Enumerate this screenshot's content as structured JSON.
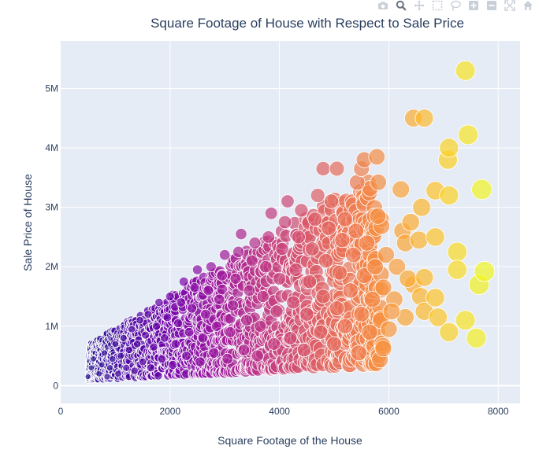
{
  "modebar": {
    "icons": [
      "camera-icon",
      "zoom-icon",
      "pan-icon",
      "box-select-icon",
      "lasso-select-icon",
      "zoom-in-icon",
      "zoom-out-icon",
      "autoscale-icon",
      "home-icon"
    ]
  },
  "colors": {
    "plot_bg": "#e5ecf6",
    "grid": "#ffffff",
    "text": "#2a3f5f",
    "colorscale": [
      "#0d0887",
      "#46039f",
      "#7201a8",
      "#9c179e",
      "#bd3786",
      "#d8576b",
      "#ed7953",
      "#fb9f3a",
      "#fdca26",
      "#f0f921"
    ]
  },
  "chart_data": {
    "type": "scatter",
    "title": "Square Footage of House with Respect to Sale Price",
    "xlabel": "Square Footage of the House",
    "ylabel": "Sale Price of House",
    "xlim": [
      0,
      8400
    ],
    "ylim": [
      -300000,
      5800000
    ],
    "xticks": [
      0,
      2000,
      4000,
      6000,
      8000
    ],
    "xtick_labels": [
      "0",
      "2000",
      "4000",
      "6000",
      "8000"
    ],
    "yticks": [
      0,
      1000000,
      2000000,
      3000000,
      4000000,
      5000000
    ],
    "ytick_labels": [
      "0",
      "1M",
      "2M",
      "3M",
      "4M",
      "5M"
    ],
    "grid": true,
    "marker_size_and_color_by": "x",
    "highlighted_points": [
      {
        "x": 7400,
        "y": 5300000
      },
      {
        "x": 6450,
        "y": 4500000
      },
      {
        "x": 6650,
        "y": 4500000
      },
      {
        "x": 7450,
        "y": 4220000
      },
      {
        "x": 7100,
        "y": 4000000
      },
      {
        "x": 5780,
        "y": 3850000
      },
      {
        "x": 7080,
        "y": 3800000
      },
      {
        "x": 4800,
        "y": 3650000
      },
      {
        "x": 5050,
        "y": 3650000
      },
      {
        "x": 5500,
        "y": 3650000
      },
      {
        "x": 5550,
        "y": 3800000
      },
      {
        "x": 5420,
        "y": 3420000
      },
      {
        "x": 7700,
        "y": 3300000
      },
      {
        "x": 6850,
        "y": 3280000
      },
      {
        "x": 6220,
        "y": 3300000
      },
      {
        "x": 7100,
        "y": 3200000
      },
      {
        "x": 6600,
        "y": 3000000
      },
      {
        "x": 6400,
        "y": 2750000
      },
      {
        "x": 6550,
        "y": 2450000
      },
      {
        "x": 6850,
        "y": 2500000
      },
      {
        "x": 7250,
        "y": 2250000
      },
      {
        "x": 7750,
        "y": 1920000
      },
      {
        "x": 7250,
        "y": 1950000
      },
      {
        "x": 6650,
        "y": 1820000
      },
      {
        "x": 6350,
        "y": 1800000
      },
      {
        "x": 7650,
        "y": 1700000
      },
      {
        "x": 6850,
        "y": 1480000
      },
      {
        "x": 6580,
        "y": 1500000
      },
      {
        "x": 6650,
        "y": 1250000
      },
      {
        "x": 6900,
        "y": 1150000
      },
      {
        "x": 7400,
        "y": 1100000
      },
      {
        "x": 7100,
        "y": 900000
      },
      {
        "x": 7600,
        "y": 800000
      },
      {
        "x": 6050,
        "y": 1250000
      },
      {
        "x": 5450,
        "y": 550000
      },
      {
        "x": 5200,
        "y": 2800000
      }
    ],
    "point_cloud": [
      {
        "x": 500,
        "y": 150000
      },
      {
        "x": 560,
        "y": 300000
      },
      {
        "x": 600,
        "y": 450000
      },
      {
        "x": 700,
        "y": 200000
      },
      {
        "x": 750,
        "y": 350000
      },
      {
        "x": 800,
        "y": 550000
      },
      {
        "x": 850,
        "y": 150000
      },
      {
        "x": 900,
        "y": 300000
      },
      {
        "x": 950,
        "y": 450000
      },
      {
        "x": 1000,
        "y": 700000
      },
      {
        "x": 1050,
        "y": 200000
      },
      {
        "x": 1100,
        "y": 500000
      },
      {
        "x": 1150,
        "y": 800000
      },
      {
        "x": 1200,
        "y": 300000
      },
      {
        "x": 1250,
        "y": 600000
      },
      {
        "x": 1300,
        "y": 950000
      },
      {
        "x": 1350,
        "y": 250000
      },
      {
        "x": 1400,
        "y": 700000
      },
      {
        "x": 1450,
        "y": 1100000
      },
      {
        "x": 1500,
        "y": 400000
      },
      {
        "x": 1550,
        "y": 850000
      },
      {
        "x": 1600,
        "y": 1200000
      },
      {
        "x": 1650,
        "y": 300000
      },
      {
        "x": 1700,
        "y": 650000
      },
      {
        "x": 1750,
        "y": 1000000
      },
      {
        "x": 1800,
        "y": 1400000
      },
      {
        "x": 1850,
        "y": 450000
      },
      {
        "x": 1900,
        "y": 800000
      },
      {
        "x": 1950,
        "y": 1150000
      },
      {
        "x": 2000,
        "y": 1500000
      },
      {
        "x": 2050,
        "y": 350000
      },
      {
        "x": 2100,
        "y": 700000
      },
      {
        "x": 2150,
        "y": 1050000
      },
      {
        "x": 2200,
        "y": 1400000
      },
      {
        "x": 2250,
        "y": 1750000
      },
      {
        "x": 2300,
        "y": 500000
      },
      {
        "x": 2350,
        "y": 900000
      },
      {
        "x": 2400,
        "y": 1300000
      },
      {
        "x": 2450,
        "y": 1650000
      },
      {
        "x": 2500,
        "y": 1950000
      },
      {
        "x": 2550,
        "y": 400000
      },
      {
        "x": 2600,
        "y": 800000
      },
      {
        "x": 2650,
        "y": 1200000
      },
      {
        "x": 2700,
        "y": 1600000
      },
      {
        "x": 2750,
        "y": 2000000
      },
      {
        "x": 2800,
        "y": 550000
      },
      {
        "x": 2850,
        "y": 1000000
      },
      {
        "x": 2900,
        "y": 1450000
      },
      {
        "x": 2950,
        "y": 1850000
      },
      {
        "x": 3000,
        "y": 2200000
      },
      {
        "x": 3050,
        "y": 450000
      },
      {
        "x": 3100,
        "y": 900000
      },
      {
        "x": 3150,
        "y": 1350000
      },
      {
        "x": 3200,
        "y": 1800000
      },
      {
        "x": 3250,
        "y": 2250000
      },
      {
        "x": 3300,
        "y": 2550000
      },
      {
        "x": 3350,
        "y": 600000
      },
      {
        "x": 3400,
        "y": 1100000
      },
      {
        "x": 3450,
        "y": 1600000
      },
      {
        "x": 3500,
        "y": 2100000
      },
      {
        "x": 3550,
        "y": 2400000
      },
      {
        "x": 3600,
        "y": 500000
      },
      {
        "x": 3650,
        "y": 1000000
      },
      {
        "x": 3700,
        "y": 1500000
      },
      {
        "x": 3750,
        "y": 2000000
      },
      {
        "x": 3800,
        "y": 2500000
      },
      {
        "x": 3850,
        "y": 2900000
      },
      {
        "x": 3900,
        "y": 700000
      },
      {
        "x": 3950,
        "y": 1250000
      },
      {
        "x": 4000,
        "y": 1800000
      },
      {
        "x": 4050,
        "y": 2300000
      },
      {
        "x": 4100,
        "y": 2750000
      },
      {
        "x": 4150,
        "y": 3100000
      },
      {
        "x": 4200,
        "y": 800000
      },
      {
        "x": 4250,
        "y": 1400000
      },
      {
        "x": 4300,
        "y": 1950000
      },
      {
        "x": 4350,
        "y": 2500000
      },
      {
        "x": 4400,
        "y": 2950000
      },
      {
        "x": 4450,
        "y": 600000
      },
      {
        "x": 4500,
        "y": 1200000
      },
      {
        "x": 4550,
        "y": 1750000
      },
      {
        "x": 4600,
        "y": 2300000
      },
      {
        "x": 4650,
        "y": 2800000
      },
      {
        "x": 4700,
        "y": 3200000
      },
      {
        "x": 4750,
        "y": 900000
      },
      {
        "x": 4800,
        "y": 1500000
      },
      {
        "x": 4850,
        "y": 2100000
      },
      {
        "x": 4900,
        "y": 2650000
      },
      {
        "x": 4950,
        "y": 3100000
      },
      {
        "x": 5000,
        "y": 700000
      },
      {
        "x": 5050,
        "y": 1300000
      },
      {
        "x": 5100,
        "y": 1900000
      },
      {
        "x": 5150,
        "y": 2450000
      },
      {
        "x": 5200,
        "y": 1000000
      },
      {
        "x": 5300,
        "y": 1600000
      },
      {
        "x": 5350,
        "y": 2200000
      },
      {
        "x": 5400,
        "y": 2600000
      },
      {
        "x": 5500,
        "y": 1200000
      },
      {
        "x": 5550,
        "y": 1850000
      },
      {
        "x": 5600,
        "y": 2400000
      },
      {
        "x": 5650,
        "y": 900000
      },
      {
        "x": 5700,
        "y": 1450000
      },
      {
        "x": 5750,
        "y": 2000000
      },
      {
        "x": 5800,
        "y": 2850000
      },
      {
        "x": 5850,
        "y": 1100000
      },
      {
        "x": 5900,
        "y": 1650000
      },
      {
        "x": 5950,
        "y": 2200000
      },
      {
        "x": 6000,
        "y": 950000
      },
      {
        "x": 6100,
        "y": 1450000
      },
      {
        "x": 6150,
        "y": 2000000
      },
      {
        "x": 6250,
        "y": 2600000
      },
      {
        "x": 6300,
        "y": 1150000
      },
      {
        "x": 6450,
        "y": 1700000
      },
      {
        "x": 6300,
        "y": 2400000
      }
    ]
  }
}
